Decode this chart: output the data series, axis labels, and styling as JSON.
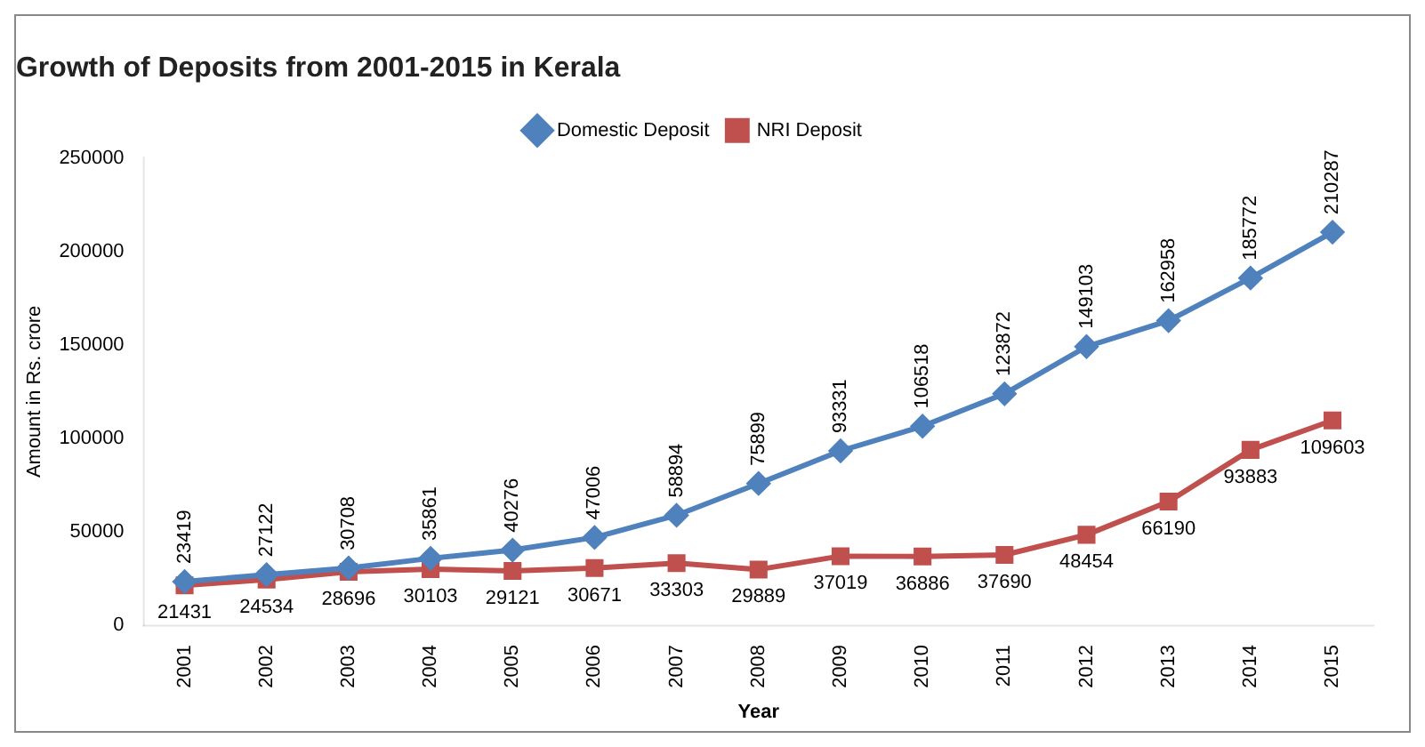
{
  "chart_data": {
    "type": "line",
    "title": "Growth of Deposits from 2001-2015 in Kerala",
    "xlabel": "Year",
    "ylabel": "Amount in Rs. crore",
    "categories": [
      "2001",
      "2002",
      "2003",
      "2004",
      "2005",
      "2006",
      "2007",
      "2008",
      "2009",
      "2010",
      "2011",
      "2012",
      "2013",
      "2014",
      "2015"
    ],
    "series": [
      {
        "name": "Domestic Deposit",
        "color": "#4f81bd",
        "marker": "diamond",
        "values": [
          23419,
          27122,
          30708,
          35861,
          40276,
          47006,
          58894,
          75899,
          93331,
          106518,
          123872,
          149103,
          162958,
          185772,
          210287
        ]
      },
      {
        "name": "NRI Deposit",
        "color": "#c0504d",
        "marker": "square",
        "values": [
          21431,
          24534,
          28696,
          30103,
          29121,
          30671,
          33303,
          29889,
          37019,
          36886,
          37690,
          48454,
          66190,
          93883,
          109603
        ]
      }
    ],
    "ylim": [
      0,
      250000
    ],
    "yticks": [
      0,
      50000,
      100000,
      150000,
      200000,
      250000
    ],
    "grid": false,
    "legend": "top",
    "data_labels": true
  }
}
